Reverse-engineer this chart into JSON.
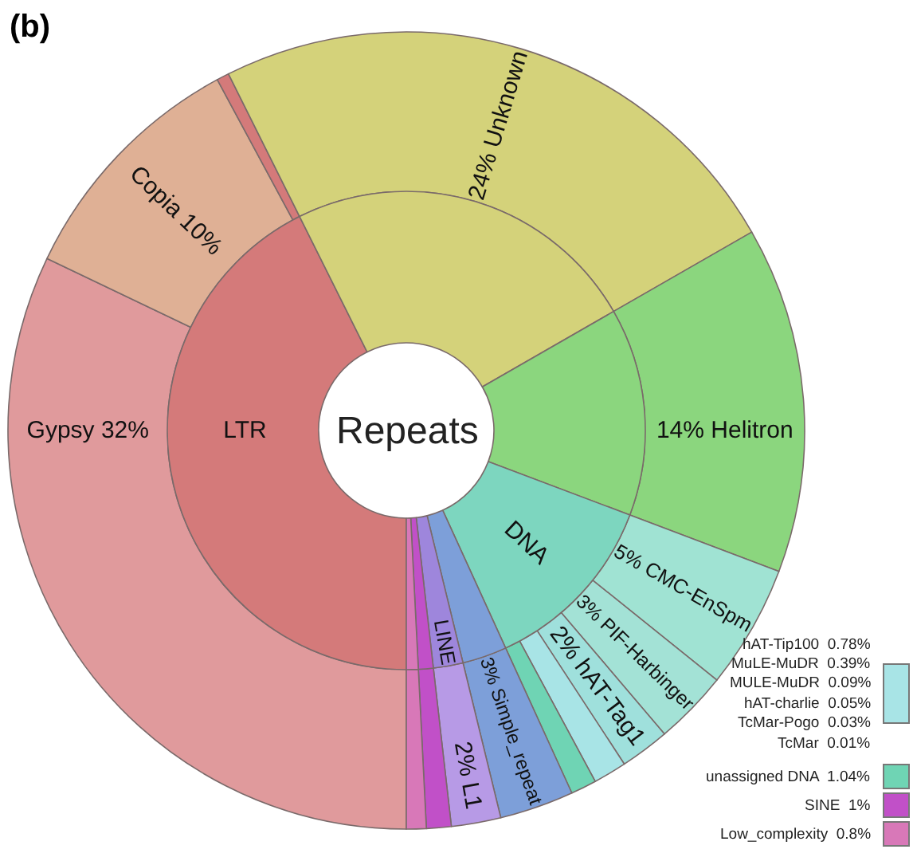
{
  "chart_data": [
    {
      "type": "donut",
      "title": "(b)",
      "annotations": [
        "hAT-Tip100  0.78%",
        "MuLE-MuDR  0.39%",
        "MULE-MuDR  0.09%",
        "hAT-charlie  0.05%",
        "TcMar-Pogo  0.03%",
        "TcMar  0.01%",
        "unassigned DNA  1.04%",
        "SINE  1%",
        "Low_complexity  0.8%"
      ],
      "categories": [
        "Gypsy 32%",
        "Copia 10%",
        null,
        "24% Unknown",
        "14% Helitron",
        "5% CMC-EnSpm",
        "3% PIF-Harbinger",
        "2% hAT-Tag1",
        null,
        null,
        "3% Simple_repeat",
        "2% L1",
        null,
        null
      ],
      "values": [
        32,
        10,
        0.5,
        24,
        14,
        5,
        3,
        2,
        1.35,
        1.04,
        3,
        2,
        1,
        0.8
      ],
      "colors": [
        "#e09a9c",
        "#dfb095",
        "#d47a7a",
        "#d4d27a",
        "#8bd67e",
        "#a0e3d3",
        "#a3e2d6",
        "#9fe0dc",
        "#a8e4e6",
        "#6fd4b4",
        "#7d9fd9",
        "#b79ae6",
        "#c150c8",
        "#d878b8"
      ]
    },
    {
      "type": "donut",
      "annotations": [
        "Repeats"
      ],
      "categories": [
        "LTR",
        null,
        null,
        "DNA",
        null,
        "LINE",
        null,
        null
      ],
      "values": [
        42.5,
        24,
        14,
        12.39,
        3,
        2,
        1,
        0.8
      ],
      "colors": [
        "#d47a7a",
        "#d4d27a",
        "#8bd67e",
        "#7dd6bf",
        "#7d9fd9",
        "#9e86dc",
        "#c150c8",
        "#d878b8"
      ]
    }
  ]
}
